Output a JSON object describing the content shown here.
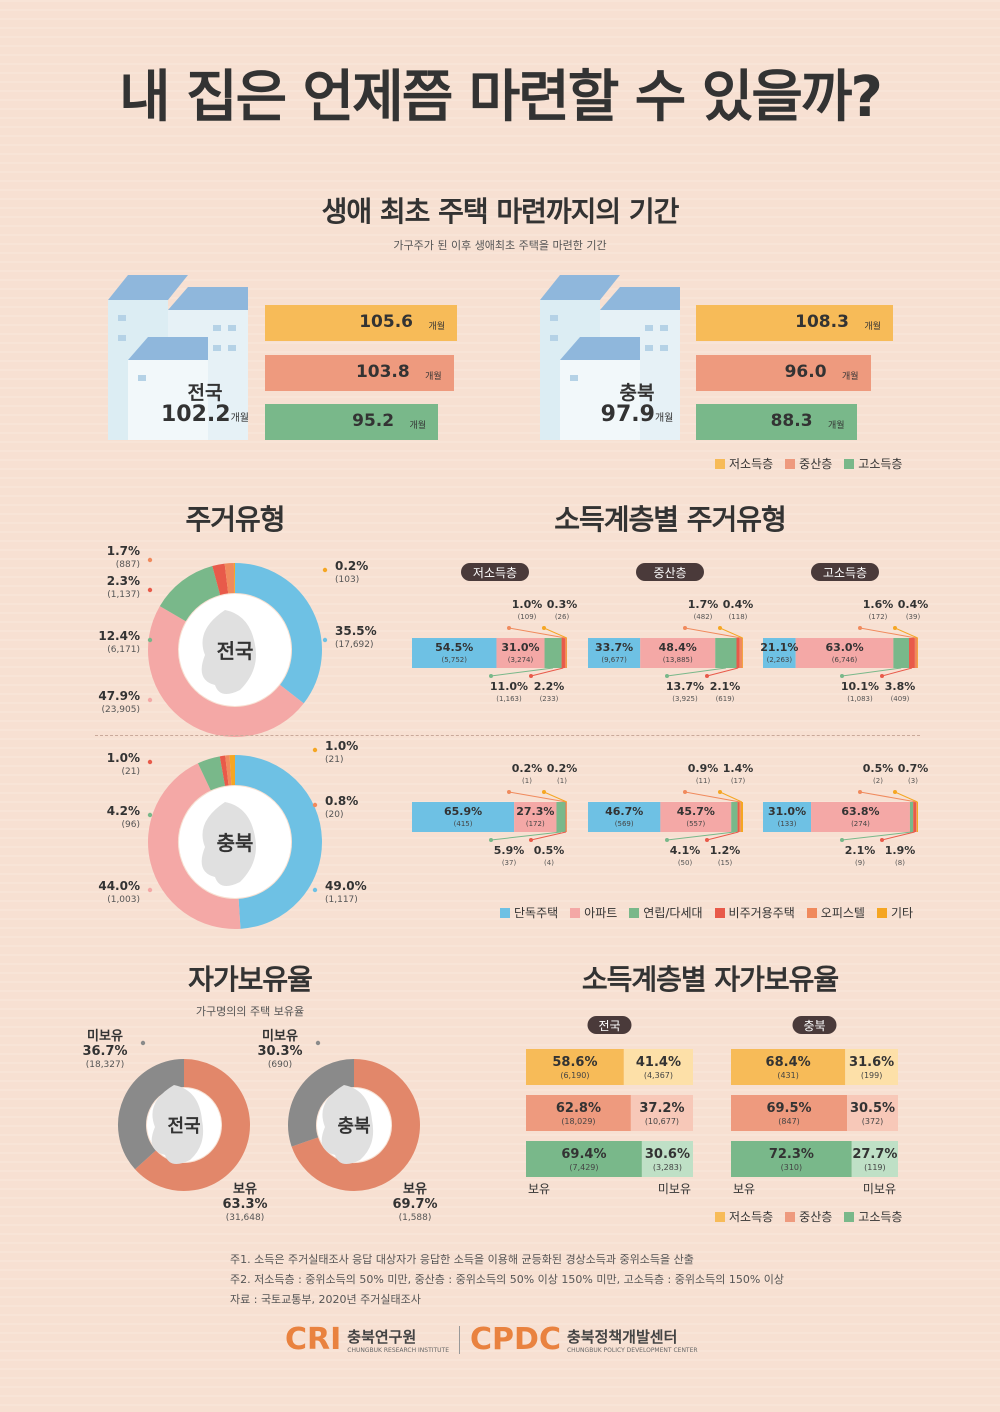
{
  "title": "내 집은 언제쯤 마련할 수 있을까?",
  "colors": {
    "low": "#f7bb58",
    "mid": "#ee9a7e",
    "high": "#79b88a",
    "detached": "#6ec1e4",
    "apt": "#f4a8a6",
    "row": "#79b88a",
    "nonres": "#e85a4a",
    "office": "#f08a5d",
    "etc": "#f5a623",
    "own": "#e2876a",
    "noown": "#8a8a8a"
  },
  "section1": {
    "title": "생애 최초 주택 마련까지의 기간",
    "subtitle": "가구주가 된 이후 생애최초 주택을 마련한 기간",
    "unit": "개월"
  },
  "section2": {
    "title": "주거유형"
  },
  "section3": {
    "title": "소득계층별 주거유형"
  },
  "section4": {
    "title": "자가보유율",
    "subtitle": "가구명의의 주택 보유율"
  },
  "section5": {
    "title": "소득계층별 자가보유율",
    "own_label": "보유",
    "noown_label": "미보유"
  },
  "legend_income": [
    "저소득층",
    "중산층",
    "고소득층"
  ],
  "legend_housing": [
    "단독주택",
    "아파트",
    "연립/다세대",
    "비주거용주택",
    "오피스텔",
    "기타"
  ],
  "notes": [
    "주1. 소득은 주거실태조사 응답 대상자가 응답한 소득을 이용해 균등화된 경상소득과 중위소득을 산출",
    "주2. 저소득층 : 중위소득의 50% 미만, 중산층 : 중위소득의 50% 이상 150% 미만, 고소득층 : 중위소득의 150% 이상",
    "자료 : 국토교통부, 2020년 주거실태조사"
  ],
  "logos": {
    "cri": "CRI",
    "cri_name": "충북연구원",
    "cri_en": "CHUNGBUK RESEARCH INSTITUTE",
    "cpdc": "CPDC",
    "cpdc_name": "충북정책개발센터",
    "cpdc_en": "CHUNGBUK POLICY DEVELOPMENT CENTER"
  },
  "chart_data": [
    {
      "type": "bar",
      "name_label": "전국",
      "total": "102.2",
      "categories": [
        "저소득층",
        "중산층",
        "고소득층"
      ],
      "values": [
        105.6,
        103.8,
        95.2
      ]
    },
    {
      "type": "bar",
      "name_label": "충북",
      "total": "97.9",
      "categories": [
        "저소득층",
        "중산층",
        "고소득층"
      ],
      "values": [
        108.3,
        96.0,
        88.3
      ]
    },
    {
      "type": "pie",
      "name_label": "전국",
      "categories": [
        "단독주택",
        "아파트",
        "연립/다세대",
        "비주거용주택",
        "오피스텔",
        "기타"
      ],
      "values": [
        35.5,
        47.9,
        12.4,
        2.3,
        1.7,
        0.2
      ],
      "counts": [
        "(17,692)",
        "(23,905)",
        "(6,171)",
        "(1,137)",
        "(887)",
        "(103)"
      ]
    },
    {
      "type": "pie",
      "name_label": "충북",
      "categories": [
        "단독주택",
        "아파트",
        "연립/다세대",
        "비주거용주택",
        "오피스텔",
        "기타"
      ],
      "values": [
        49.0,
        44.0,
        4.2,
        1.0,
        0.8,
        1.0
      ],
      "counts": [
        "(1,117)",
        "(1,003)",
        "(96)",
        "(21)",
        "(20)",
        "(21)"
      ]
    },
    {
      "type": "bar",
      "stacked": true,
      "group": "전국",
      "categories": [
        "저소득층",
        "중산층",
        "고소득층"
      ],
      "series": [
        {
          "name": "단독주택",
          "values": [
            54.5,
            33.7,
            21.1
          ],
          "counts": [
            "(5,752)",
            "(9,677)",
            "(2,263)"
          ]
        },
        {
          "name": "아파트",
          "values": [
            31.0,
            48.4,
            63.0
          ],
          "counts": [
            "(3,274)",
            "(13,885)",
            "(6,746)"
          ]
        },
        {
          "name": "연립/다세대",
          "values": [
            11.0,
            13.7,
            10.1
          ],
          "counts": [
            "(1,163)",
            "(3,925)",
            "(1,083)"
          ]
        },
        {
          "name": "비주거용주택",
          "values": [
            2.2,
            2.1,
            3.8
          ],
          "counts": [
            "(233)",
            "(619)",
            "(409)"
          ]
        },
        {
          "name": "오피스텔",
          "values": [
            1.0,
            1.7,
            1.6
          ],
          "counts": [
            "(109)",
            "(482)",
            "(172)"
          ]
        },
        {
          "name": "기타",
          "values": [
            0.3,
            0.4,
            0.4
          ],
          "counts": [
            "(26)",
            "(118)",
            "(39)"
          ]
        }
      ]
    },
    {
      "type": "bar",
      "stacked": true,
      "group": "충북",
      "categories": [
        "저소득층",
        "중산층",
        "고소득층"
      ],
      "series": [
        {
          "name": "단독주택",
          "values": [
            65.9,
            46.7,
            31.0
          ],
          "counts": [
            "(415)",
            "(569)",
            "(133)"
          ]
        },
        {
          "name": "아파트",
          "values": [
            27.3,
            45.7,
            63.8
          ],
          "counts": [
            "(172)",
            "(557)",
            "(274)"
          ]
        },
        {
          "name": "연립/다세대",
          "values": [
            5.9,
            4.1,
            2.1
          ],
          "counts": [
            "(37)",
            "(50)",
            "(9)"
          ]
        },
        {
          "name": "비주거용주택",
          "values": [
            0.5,
            1.2,
            1.9
          ],
          "counts": [
            "(4)",
            "(15)",
            "(8)"
          ]
        },
        {
          "name": "오피스텔",
          "values": [
            0.2,
            0.9,
            0.5
          ],
          "counts": [
            "(1)",
            "(11)",
            "(2)"
          ]
        },
        {
          "name": "기타",
          "values": [
            0.2,
            1.4,
            0.7
          ],
          "counts": [
            "(1)",
            "(17)",
            "(3)"
          ]
        }
      ]
    },
    {
      "type": "pie",
      "name_label": "전국",
      "categories": [
        "보유",
        "미보유"
      ],
      "values": [
        63.3,
        36.7
      ],
      "counts": [
        "(31,648)",
        "(18,327)"
      ]
    },
    {
      "type": "pie",
      "name_label": "충북",
      "categories": [
        "보유",
        "미보유"
      ],
      "values": [
        69.7,
        30.3
      ],
      "counts": [
        "(1,588)",
        "(690)"
      ]
    },
    {
      "type": "bar",
      "stacked": true,
      "group": "전국",
      "categories": [
        "저소득층",
        "중산층",
        "고소득층"
      ],
      "series": [
        {
          "name": "보유",
          "values": [
            58.6,
            62.8,
            69.4
          ],
          "counts": [
            "(6,190)",
            "(18,029)",
            "(7,429)"
          ]
        },
        {
          "name": "미보유",
          "values": [
            41.4,
            37.2,
            30.6
          ],
          "counts": [
            "(4,367)",
            "(10,677)",
            "(3,283)"
          ]
        }
      ]
    },
    {
      "type": "bar",
      "stacked": true,
      "group": "충북",
      "categories": [
        "저소득층",
        "중산층",
        "고소득층"
      ],
      "series": [
        {
          "name": "보유",
          "values": [
            68.4,
            69.5,
            72.3
          ],
          "counts": [
            "(431)",
            "(847)",
            "(310)"
          ]
        },
        {
          "name": "미보유",
          "values": [
            31.6,
            30.5,
            27.7
          ],
          "counts": [
            "(199)",
            "(372)",
            "(119)"
          ]
        }
      ]
    }
  ]
}
